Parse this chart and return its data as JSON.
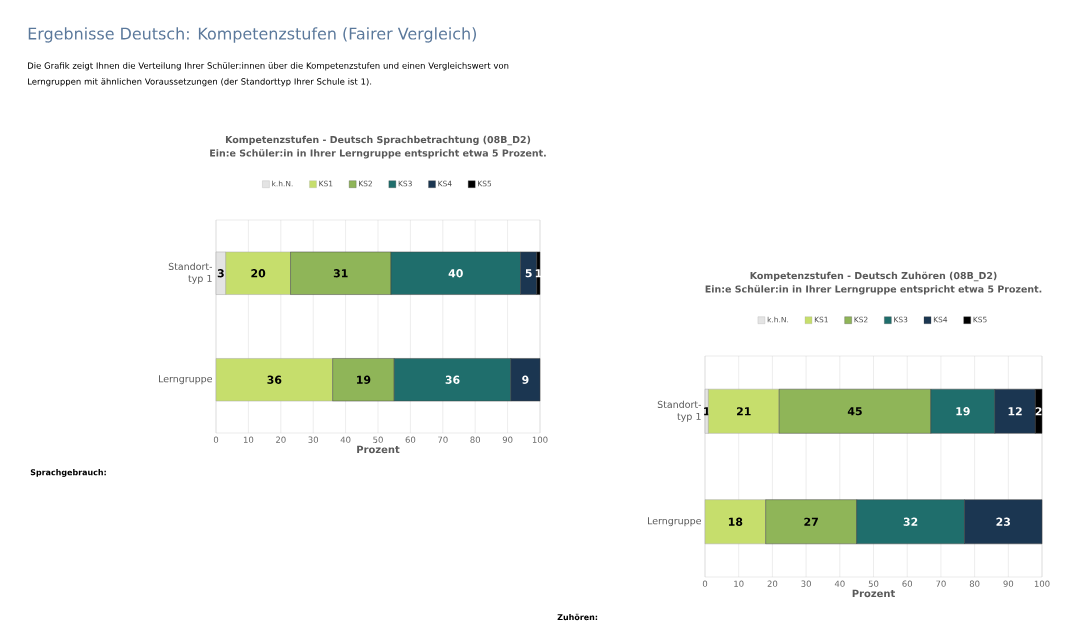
{
  "chart_data": [
    {
      "type": "bar",
      "orientation": "horizontal",
      "stacked": true,
      "title": "Kompetenzstufen - Deutsch Sprachbetrachtung (08B_D2)",
      "subtitle": "Ein:e Schüler:in in Ihrer Lerngruppe entspricht etwa 5 Prozent.",
      "xlabel": "Prozent",
      "categories": [
        "Standort-typ 1",
        "Lerngruppe"
      ],
      "series": [
        {
          "name": "k.h.N.",
          "color": "#e4e4e4",
          "values": [
            3,
            null
          ]
        },
        {
          "name": "KS1",
          "color": "#c6de6c",
          "values": [
            20,
            36
          ]
        },
        {
          "name": "KS2",
          "color": "#8fb558",
          "values": [
            31,
            19
          ]
        },
        {
          "name": "KS3",
          "color": "#1f6e6c",
          "values": [
            40,
            36
          ]
        },
        {
          "name": "KS4",
          "color": "#1b3651",
          "values": [
            5,
            9
          ]
        },
        {
          "name": "KS5",
          "color": "#000000",
          "values": [
            1,
            null
          ]
        }
      ],
      "xlim": [
        0,
        100
      ],
      "xticks": [
        0,
        10,
        20,
        30,
        40,
        50,
        60,
        70,
        80,
        90,
        100
      ],
      "grid": "x",
      "legend": "top",
      "data_labels": true,
      "annotations": [
        "Ergebnisse Deutsch: Kompetenzstufen (Fairer Vergleich)",
        "Die Grafik zeigt Ihnen die Verteilung Ihrer Schüler:innen über die Kompetenzstufen und einen Vergleichswert von Lerngruppen mit ähnlichen Voraussetzungen (der Standorttyp Ihrer Schule ist 1).",
        "Sprachgebrauch:"
      ]
    },
    {
      "type": "bar",
      "orientation": "horizontal",
      "stacked": true,
      "title": "Kompetenzstufen - Deutsch Zuhören (08B_D2)",
      "subtitle": "Ein:e Schüler:in in Ihrer Lerngruppe entspricht etwa 5 Prozent.",
      "xlabel": "Prozent",
      "categories": [
        "Standort-typ 1",
        "Lerngruppe"
      ],
      "series": [
        {
          "name": "k.h.N.",
          "color": "#e4e4e4",
          "values": [
            1,
            null
          ]
        },
        {
          "name": "KS1",
          "color": "#c6de6c",
          "values": [
            21,
            18
          ]
        },
        {
          "name": "KS2",
          "color": "#8fb558",
          "values": [
            45,
            27
          ]
        },
        {
          "name": "KS3",
          "color": "#1f6e6c",
          "values": [
            19,
            32
          ]
        },
        {
          "name": "KS4",
          "color": "#1b3651",
          "values": [
            12,
            23
          ]
        },
        {
          "name": "KS5",
          "color": "#000000",
          "values": [
            2,
            null
          ]
        }
      ],
      "xlim": [
        0,
        100
      ],
      "xticks": [
        0,
        10,
        20,
        30,
        40,
        50,
        60,
        70,
        80,
        90,
        100
      ],
      "grid": "x",
      "legend": "top",
      "data_labels": true,
      "annotations": [
        "Zuhören:"
      ]
    }
  ]
}
